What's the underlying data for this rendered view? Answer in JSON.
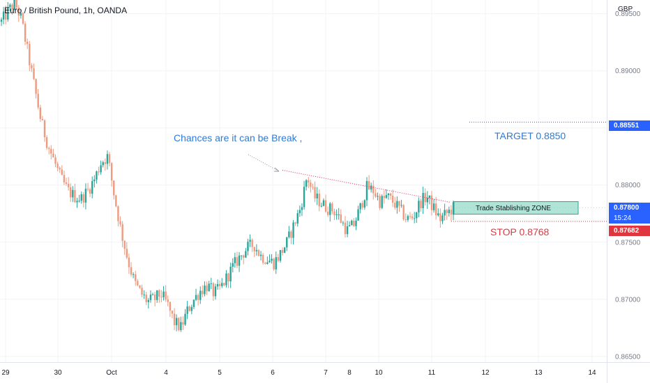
{
  "header": {
    "title": "Euro / British Pound, 1h, OANDA",
    "currency": "GBP"
  },
  "annotations": {
    "chances": "Chances are it can be Break ,",
    "target": "TARGET 0.8850",
    "stop": "STOP 0.8768",
    "zone": "Trade Stablishing ZONE"
  },
  "badges": {
    "target_price": "0.88551",
    "current_price": "0.87800",
    "countdown": "15:24",
    "stop_price": "0.87682"
  },
  "colors": {
    "up": "#26a69a",
    "down": "#ef9a7f",
    "target_line": "#2962ff",
    "stop_line": "#e0373e",
    "zone_fill": "#8fd8c4",
    "trendline": "#e91e63"
  },
  "chart_data": {
    "type": "candlestick",
    "y_axis": {
      "ticks": [
        "0.89500",
        "0.89000",
        "0.88500",
        "0.88000",
        "0.87500",
        "0.87000",
        "0.86500"
      ],
      "ylim": [
        0.8645,
        0.8962
      ]
    },
    "x_axis": {
      "ticks": [
        "29",
        "30",
        "Oct",
        "4",
        "5",
        "6",
        "7",
        "8",
        "10",
        "11",
        "12",
        "13",
        "14"
      ]
    },
    "levels": {
      "target": 0.88551,
      "stop": 0.87682,
      "current": 0.878,
      "zone_low": 0.87745,
      "zone_high": 0.87855
    },
    "trendline": {
      "from_x": "6",
      "from_y": 0.8813,
      "to_x": "11",
      "to_y": 0.8785
    },
    "path": [
      0.8943,
      0.8952,
      0.896,
      0.8945,
      0.8915,
      0.8885,
      0.8855,
      0.8835,
      0.882,
      0.8805,
      0.8795,
      0.879,
      0.8788,
      0.8795,
      0.8805,
      0.882,
      0.8825,
      0.879,
      0.876,
      0.8735,
      0.8715,
      0.8705,
      0.8698,
      0.87,
      0.8705,
      0.8695,
      0.868,
      0.8675,
      0.869,
      0.87,
      0.8708,
      0.8712,
      0.8705,
      0.871,
      0.872,
      0.873,
      0.8738,
      0.8745,
      0.8748,
      0.8738,
      0.8735,
      0.8732,
      0.874,
      0.875,
      0.8765,
      0.878,
      0.8808,
      0.879,
      0.8785,
      0.878,
      0.8778,
      0.877,
      0.876,
      0.8765,
      0.878,
      0.8798,
      0.8795,
      0.8785,
      0.879,
      0.8785,
      0.8778,
      0.877,
      0.8772,
      0.8785,
      0.879,
      0.878,
      0.877,
      0.8775,
      0.878
    ]
  }
}
